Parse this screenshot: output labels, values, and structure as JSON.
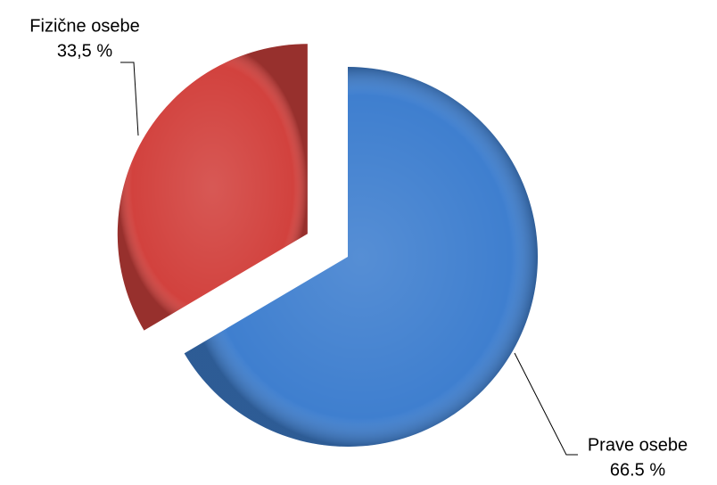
{
  "chart_data": {
    "type": "pie",
    "categories": [
      "Prave osebe",
      "Fizične osebe"
    ],
    "values": [
      66.5,
      33.5
    ],
    "value_labels": [
      "66.5 %",
      "33,5 %"
    ],
    "colors": [
      "#3f7fcf",
      "#d2423e"
    ]
  }
}
